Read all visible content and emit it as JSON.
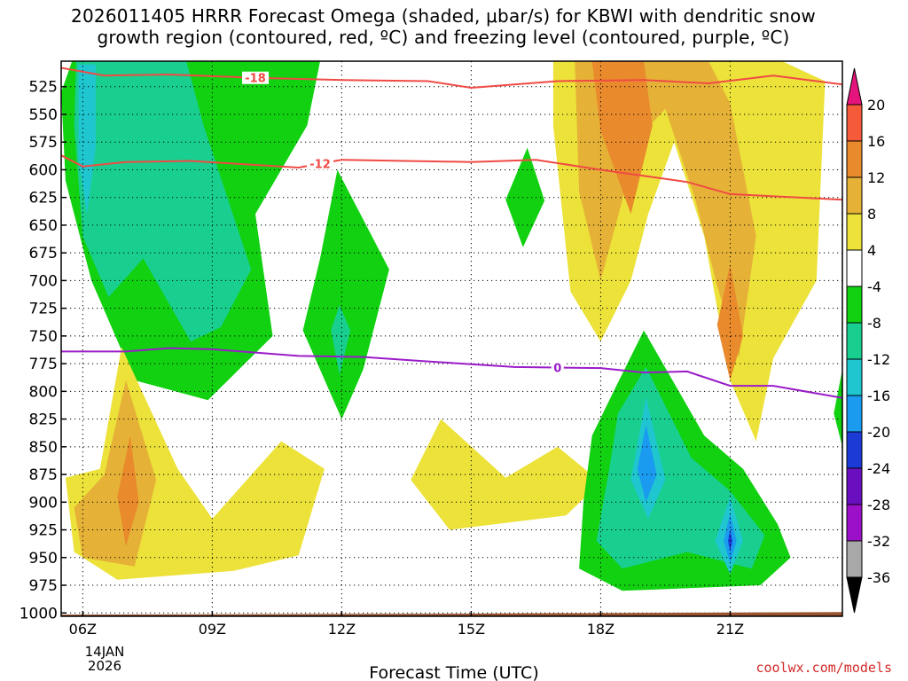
{
  "chart_data": {
    "type": "heatmap",
    "title_line1": "2026011405 HRRR Forecast Omega (shaded, μbar/s) for KBWI with dendritic snow",
    "title_line2": "growth region (contoured, red, ºC) and freezing level (contoured, purple, ºC)",
    "xlabel": "Forecast Time (UTC)",
    "x_ticks": [
      {
        "hour": 6,
        "label": "06Z"
      },
      {
        "hour": 9,
        "label": "09Z"
      },
      {
        "hour": 12,
        "label": "12Z"
      },
      {
        "hour": 15,
        "label": "15Z"
      },
      {
        "hour": 18,
        "label": "18Z"
      },
      {
        "hour": 21,
        "label": "21Z"
      }
    ],
    "x_date_label_1": "14JAN",
    "x_date_label_2": "2026",
    "xlim": [
      5.5,
      23.6
    ],
    "ylim_hpa": [
      1003,
      502
    ],
    "y_ticks": [
      525,
      550,
      575,
      600,
      625,
      650,
      675,
      700,
      725,
      750,
      775,
      800,
      825,
      850,
      875,
      900,
      925,
      950,
      975,
      1000
    ],
    "omega_scale": {
      "levels": [
        -36,
        -32,
        -28,
        -24,
        -20,
        -16,
        -12,
        -8,
        -4,
        4,
        8,
        12,
        16,
        20
      ],
      "colors": [
        "#a8a8a8",
        "#9b10c8",
        "#6a0fbf",
        "#1c3ad6",
        "#1a9bf0",
        "#1fc6cf",
        "#19cf8f",
        "#11d111",
        "#ffffff",
        "#ece23a",
        "#e5b237",
        "#e98a2c",
        "#f55a3a",
        "#e81a8a"
      ],
      "under_color": "#000000",
      "over_color": "#e4147c"
    },
    "omega_regions": [
      {
        "name": "morning-rising-green",
        "value": -6,
        "points": [
          [
            5.75,
            502
          ],
          [
            11.5,
            502
          ],
          [
            11.2,
            560
          ],
          [
            10,
            640
          ],
          [
            10.4,
            750
          ],
          [
            8.9,
            808
          ],
          [
            7.2,
            790
          ],
          [
            6.2,
            700
          ],
          [
            5.6,
            610
          ],
          [
            5.5,
            530
          ]
        ]
      },
      {
        "name": "morning-rising-teal",
        "value": -10,
        "points": [
          [
            5.85,
            502
          ],
          [
            8.4,
            502
          ],
          [
            8.8,
            560
          ],
          [
            9.9,
            690
          ],
          [
            9.2,
            742
          ],
          [
            8.5,
            755
          ],
          [
            7.4,
            680
          ],
          [
            6.6,
            715
          ],
          [
            6.0,
            660
          ],
          [
            5.8,
            560
          ]
        ]
      },
      {
        "name": "morning-rising-cyan",
        "value": -14,
        "points": [
          [
            5.9,
            505
          ],
          [
            6.3,
            505
          ],
          [
            6.3,
            580
          ],
          [
            6.1,
            640
          ],
          [
            5.9,
            590
          ]
        ]
      },
      {
        "name": "midday-rising-green",
        "value": -6,
        "points": [
          [
            11.9,
            600
          ],
          [
            13.1,
            690
          ],
          [
            12.5,
            780
          ],
          [
            12.0,
            825
          ],
          [
            11.1,
            745
          ],
          [
            11.5,
            680
          ]
        ]
      },
      {
        "name": "midday-rising-teal",
        "value": -10,
        "points": [
          [
            11.95,
            722
          ],
          [
            12.2,
            745
          ],
          [
            11.95,
            785
          ],
          [
            11.75,
            745
          ]
        ]
      },
      {
        "name": "small-rising-green",
        "value": -6,
        "points": [
          [
            16.3,
            580
          ],
          [
            16.7,
            628
          ],
          [
            16.2,
            670
          ],
          [
            15.8,
            627
          ]
        ]
      },
      {
        "name": "sfc-sinking-yellow-left",
        "value": 6,
        "points": [
          [
            6.9,
            760
          ],
          [
            8.2,
            870
          ],
          [
            9.0,
            915
          ],
          [
            10.6,
            845
          ],
          [
            11.6,
            870
          ],
          [
            11.0,
            948
          ],
          [
            9.5,
            962
          ],
          [
            6.8,
            970
          ],
          [
            5.8,
            945
          ],
          [
            5.6,
            878
          ],
          [
            6.4,
            870
          ]
        ]
      },
      {
        "name": "sfc-sinking-orange-left",
        "value": 10,
        "points": [
          [
            7.0,
            790
          ],
          [
            7.7,
            880
          ],
          [
            7.2,
            958
          ],
          [
            6.0,
            950
          ],
          [
            5.8,
            905
          ],
          [
            6.5,
            875
          ]
        ]
      },
      {
        "name": "sfc-sinking-deep-orange-left",
        "value": 14,
        "points": [
          [
            7.1,
            840
          ],
          [
            7.3,
            900
          ],
          [
            7.0,
            940
          ],
          [
            6.8,
            895
          ]
        ]
      },
      {
        "name": "sfc-sinking-yellow-mid",
        "value": 6,
        "points": [
          [
            14.3,
            825
          ],
          [
            15.8,
            878
          ],
          [
            17.0,
            850
          ],
          [
            18.0,
            882
          ],
          [
            17.2,
            912
          ],
          [
            14.5,
            925
          ],
          [
            13.6,
            880
          ]
        ]
      },
      {
        "name": "afternoon-sinking-yellow",
        "value": 6,
        "points": [
          [
            16.9,
            502
          ],
          [
            22.2,
            502
          ],
          [
            23.2,
            520
          ],
          [
            23.0,
            700
          ],
          [
            22.0,
            770
          ],
          [
            21.6,
            845
          ],
          [
            21.0,
            790
          ],
          [
            20.4,
            660
          ],
          [
            19.7,
            575
          ],
          [
            19.1,
            640
          ],
          [
            18.7,
            700
          ],
          [
            18.0,
            755
          ],
          [
            17.3,
            710
          ],
          [
            16.9,
            560
          ]
        ]
      },
      {
        "name": "afternoon-sinking-orange",
        "value": 10,
        "points": [
          [
            17.4,
            502
          ],
          [
            20.5,
            502
          ],
          [
            21.0,
            540
          ],
          [
            21.6,
            660
          ],
          [
            21.2,
            770
          ],
          [
            20.7,
            705
          ],
          [
            20.2,
            628
          ],
          [
            19.5,
            545
          ],
          [
            18.9,
            570
          ],
          [
            18.0,
            700
          ],
          [
            17.5,
            620
          ]
        ]
      },
      {
        "name": "afternoon-sinking-deep-orange",
        "value": 14,
        "points": [
          [
            17.8,
            502
          ],
          [
            19.0,
            502
          ],
          [
            19.2,
            560
          ],
          [
            18.7,
            640
          ],
          [
            18.0,
            565
          ]
        ]
      },
      {
        "name": "late-deep-orange",
        "value": 14,
        "points": [
          [
            21.0,
            685
          ],
          [
            21.3,
            750
          ],
          [
            21.0,
            790
          ],
          [
            20.7,
            740
          ]
        ]
      },
      {
        "name": "afternoon-low-rising-green",
        "value": -6,
        "points": [
          [
            19.0,
            745
          ],
          [
            20.4,
            840
          ],
          [
            21.3,
            870
          ],
          [
            22.1,
            920
          ],
          [
            22.4,
            950
          ],
          [
            21.7,
            975
          ],
          [
            18.5,
            980
          ],
          [
            17.5,
            960
          ],
          [
            17.6,
            900
          ],
          [
            17.8,
            840
          ],
          [
            18.3,
            800
          ]
        ]
      },
      {
        "name": "afternoon-low-rising-teal",
        "value": -10,
        "points": [
          [
            19.05,
            778
          ],
          [
            20.1,
            860
          ],
          [
            21.0,
            890
          ],
          [
            21.8,
            930
          ],
          [
            21.5,
            960
          ],
          [
            20.0,
            945
          ],
          [
            18.5,
            960
          ],
          [
            17.9,
            935
          ],
          [
            18.2,
            870
          ],
          [
            18.4,
            820
          ]
        ]
      },
      {
        "name": "afternoon-low-rising-cyan",
        "value": -14,
        "points": [
          [
            19.05,
            805
          ],
          [
            19.5,
            880
          ],
          [
            19.1,
            915
          ],
          [
            18.7,
            880
          ]
        ]
      },
      {
        "name": "afternoon-low-rising-blue",
        "value": -18,
        "points": [
          [
            19.05,
            830
          ],
          [
            19.3,
            875
          ],
          [
            19.05,
            900
          ],
          [
            18.85,
            870
          ]
        ]
      },
      {
        "name": "late-rising-cyan",
        "value": -14,
        "points": [
          [
            21.0,
            895
          ],
          [
            21.3,
            935
          ],
          [
            21.0,
            965
          ],
          [
            20.65,
            935
          ]
        ]
      },
      {
        "name": "late-rising-blue",
        "value": -18,
        "points": [
          [
            21.0,
            910
          ],
          [
            21.15,
            935
          ],
          [
            21.0,
            955
          ],
          [
            20.85,
            935
          ]
        ]
      },
      {
        "name": "late-rising-purple",
        "value": -22,
        "points": [
          [
            21.0,
            925
          ],
          [
            21.05,
            935
          ],
          [
            21.0,
            945
          ],
          [
            20.95,
            935
          ]
        ]
      },
      {
        "name": "edge-rising-green",
        "value": -6,
        "points": [
          [
            23.6,
            780
          ],
          [
            23.6,
            850
          ],
          [
            23.4,
            820
          ]
        ]
      }
    ],
    "isotherm_lines": [
      {
        "name": "minus-18-dgz-line",
        "label": "-18",
        "label_hour": 10.0,
        "points": [
          [
            5.5,
            508
          ],
          [
            6.5,
            515
          ],
          [
            8.0,
            514
          ],
          [
            10.0,
            517
          ],
          [
            12.0,
            519
          ],
          [
            14.0,
            520
          ],
          [
            15.0,
            526
          ],
          [
            17.0,
            520
          ],
          [
            19.0,
            519
          ],
          [
            20.5,
            522
          ],
          [
            22.0,
            515
          ],
          [
            23.6,
            523
          ]
        ]
      },
      {
        "name": "minus-12-dgz-line",
        "label": "-12",
        "label_hour": 11.5,
        "points": [
          [
            5.5,
            587
          ],
          [
            6.0,
            597
          ],
          [
            7.0,
            593
          ],
          [
            8.5,
            592
          ],
          [
            11.0,
            598
          ],
          [
            12.0,
            591
          ],
          [
            15.0,
            593
          ],
          [
            16.5,
            591
          ],
          [
            18.0,
            600
          ],
          [
            20.0,
            611
          ],
          [
            21.0,
            622
          ],
          [
            23.6,
            627
          ]
        ]
      },
      {
        "name": "zero-freezing-line",
        "label": "0",
        "label_hour": 17.0,
        "points": [
          [
            5.5,
            764
          ],
          [
            7.0,
            764
          ],
          [
            8.0,
            761
          ],
          [
            9.0,
            762
          ],
          [
            11.0,
            768
          ],
          [
            12.5,
            769
          ],
          [
            14.0,
            773
          ],
          [
            16.0,
            778
          ],
          [
            18.0,
            779
          ],
          [
            19.0,
            783
          ],
          [
            20.0,
            782
          ],
          [
            21.0,
            795
          ],
          [
            22.0,
            795
          ],
          [
            23.6,
            806
          ]
        ]
      }
    ],
    "isotherm_colors": {
      "dgz": "#f04a44",
      "freezing": "#9a1cc8"
    },
    "terrain_color": "#9a5530"
  },
  "credit": "coolwx.com/models"
}
